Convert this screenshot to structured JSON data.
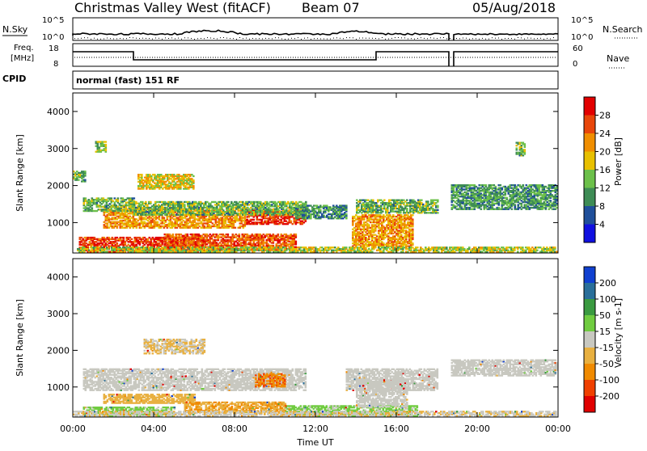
{
  "header": {
    "title": "Christmas Valley West (fitACF)",
    "beam": "Beam 07",
    "date": "05/Aug/2018"
  },
  "params": {
    "nsky_label": "N.Sky",
    "nsky_ticks": [
      "10^5",
      "10^0"
    ],
    "nsearch_label": "N.Search",
    "nsearch_ticks": [
      "10^5",
      "10^0"
    ],
    "freq_label_1": "Freq.",
    "freq_label_2": "[MHz]",
    "freq_ticks": [
      "18",
      "8"
    ],
    "nave_label": "Nave",
    "nave_ticks": [
      "60",
      "0"
    ],
    "cpid_label": "CPID",
    "cpid_value": "normal (fast) 151 RF"
  },
  "chart_data": [
    {
      "type": "heatmap",
      "title": "",
      "xlabel": "Time UT",
      "ylabel": "Slant Range [km]",
      "xlim": [
        "00:00",
        "24:00"
      ],
      "ylim": [
        180,
        4500
      ],
      "x_ticks": [
        "00:00",
        "04:00",
        "08:00",
        "12:00",
        "16:00",
        "20:00",
        "00:00"
      ],
      "y_ticks": [
        "1000",
        "2000",
        "3000",
        "4000"
      ],
      "colorbar": {
        "label": "Power [dB]",
        "ticks": [
          "4",
          "8",
          "12",
          "16",
          "20",
          "24",
          "28"
        ],
        "range": [
          0,
          30
        ],
        "colors": [
          "#1010e0",
          "#1f4f9a",
          "#3e8c55",
          "#6cc04a",
          "#e8c000",
          "#f08e00",
          "#e8460a",
          "#e20000"
        ]
      },
      "regions": [
        {
          "t0": 0.3,
          "t1": 6.5,
          "r0": 200,
          "r1": 600,
          "level": 26
        },
        {
          "t0": 4.5,
          "t1": 11.0,
          "r0": 250,
          "r1": 700,
          "level": 24
        },
        {
          "t0": 8.5,
          "t1": 11.5,
          "r0": 950,
          "r1": 1350,
          "level": 26
        },
        {
          "t0": 1.5,
          "t1": 8.5,
          "r0": 850,
          "r1": 1350,
          "level": 20
        },
        {
          "t0": 0.5,
          "t1": 3.0,
          "r0": 1300,
          "r1": 1650,
          "level": 12
        },
        {
          "t0": 3.0,
          "t1": 11.5,
          "r0": 1200,
          "r1": 1550,
          "level": 12
        },
        {
          "t0": 11.0,
          "t1": 13.5,
          "r0": 1100,
          "r1": 1450,
          "level": 10
        },
        {
          "t0": 13.8,
          "t1": 16.8,
          "r0": 350,
          "r1": 1200,
          "level": 20
        },
        {
          "t0": 14.0,
          "t1": 18.0,
          "r0": 1250,
          "r1": 1600,
          "level": 12
        },
        {
          "t0": 18.7,
          "t1": 23.9,
          "r0": 1350,
          "r1": 2000,
          "level": 10
        },
        {
          "t0": 3.2,
          "t1": 6.0,
          "r0": 1900,
          "r1": 2300,
          "level": 17
        },
        {
          "t0": 1.1,
          "t1": 1.6,
          "r0": 2900,
          "r1": 3200,
          "level": 13
        },
        {
          "t0": 0.0,
          "t1": 0.6,
          "r0": 2100,
          "r1": 2400,
          "level": 12
        },
        {
          "t0": 0.2,
          "t1": 23.9,
          "r0": 200,
          "r1": 350,
          "level": 15
        },
        {
          "t0": 21.9,
          "t1": 22.3,
          "r0": 2800,
          "r1": 3150,
          "level": 12
        }
      ]
    },
    {
      "type": "heatmap",
      "title": "",
      "xlabel": "Time UT",
      "ylabel": "Slant Range [km]",
      "xlim": [
        "00:00",
        "24:00"
      ],
      "ylim": [
        180,
        4500
      ],
      "x_ticks": [
        "00:00",
        "04:00",
        "08:00",
        "12:00",
        "16:00",
        "20:00",
        "00:00"
      ],
      "y_ticks": [
        "1000",
        "2000",
        "3000",
        "4000"
      ],
      "colorbar": {
        "label": "Velocity [m s-1]",
        "ticks": [
          "200",
          "100",
          "50",
          "15",
          "-15",
          "-50",
          "-100",
          "-200"
        ],
        "range": [
          -250,
          250
        ],
        "colors": [
          "#1040d0",
          "#2a6f9a",
          "#3a9a40",
          "#70cc40",
          "#c8c8c0",
          "#e8b040",
          "#f08a00",
          "#f04000",
          "#e00000"
        ]
      },
      "regions": [
        {
          "t0": 0.5,
          "t1": 11.5,
          "r0": 900,
          "r1": 1500,
          "level": 0
        },
        {
          "t0": 13.5,
          "t1": 18.0,
          "r0": 900,
          "r1": 1500,
          "level": 0
        },
        {
          "t0": 18.7,
          "t1": 23.9,
          "r0": 1300,
          "r1": 1750,
          "level": 0
        },
        {
          "t0": 1.5,
          "t1": 6.0,
          "r0": 550,
          "r1": 800,
          "level": -60
        },
        {
          "t0": 5.5,
          "t1": 10.5,
          "r0": 300,
          "r1": 600,
          "level": -80
        },
        {
          "t0": 9.0,
          "t1": 10.5,
          "r0": 1000,
          "r1": 1350,
          "level": -130
        },
        {
          "t0": 0.5,
          "t1": 5.0,
          "r0": 200,
          "r1": 450,
          "level": 40
        },
        {
          "t0": 10.5,
          "t1": 17.0,
          "r0": 200,
          "r1": 500,
          "level": 40
        },
        {
          "t0": 3.5,
          "t1": 6.5,
          "r0": 1900,
          "r1": 2300,
          "level": -30
        },
        {
          "t0": 14.0,
          "t1": 16.5,
          "r0": 450,
          "r1": 1200,
          "level": 0
        },
        {
          "t0": 0.0,
          "t1": 23.9,
          "r0": 200,
          "r1": 320,
          "level": -20
        }
      ]
    }
  ]
}
